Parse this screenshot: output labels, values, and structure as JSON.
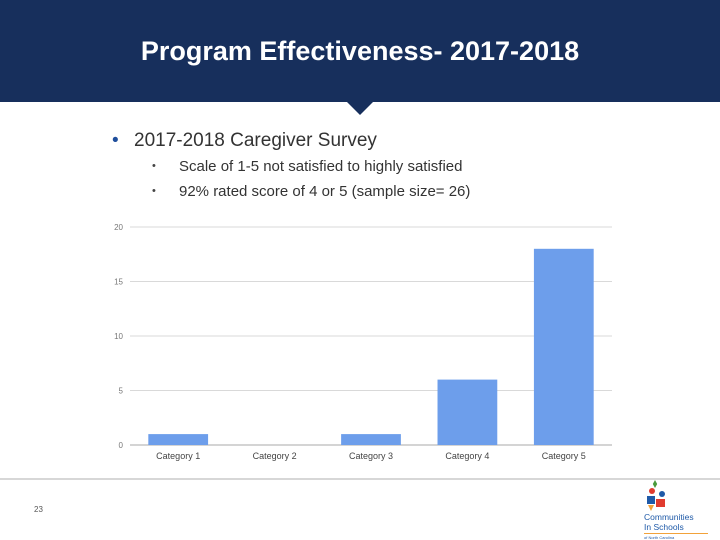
{
  "slide": {
    "title": "Program Effectiveness- 2017-2018",
    "bullets": {
      "main": "2017-2018 Caregiver Survey",
      "sub": [
        "Scale of 1-5 not satisfied to highly satisfied",
        "92% rated score of 4 or 5 (sample size= 26)"
      ]
    },
    "page_number": "23",
    "logo": {
      "line1": "Communities",
      "line2": "In Schools",
      "line3": "of North Carolina"
    }
  },
  "colors": {
    "header_bg": "#172f5c",
    "bar": "#6d9eeb",
    "grid": "#d9d9d9"
  },
  "chart_data": {
    "type": "bar",
    "categories": [
      "Category 1",
      "Category 2",
      "Category 3",
      "Category 4",
      "Category 5"
    ],
    "values": [
      1,
      0,
      1,
      6,
      18
    ],
    "yticks": [
      "0",
      "5",
      "10",
      "15",
      "20"
    ],
    "ylim": [
      0,
      20
    ],
    "grid": true,
    "title": "",
    "xlabel": "",
    "ylabel": ""
  }
}
